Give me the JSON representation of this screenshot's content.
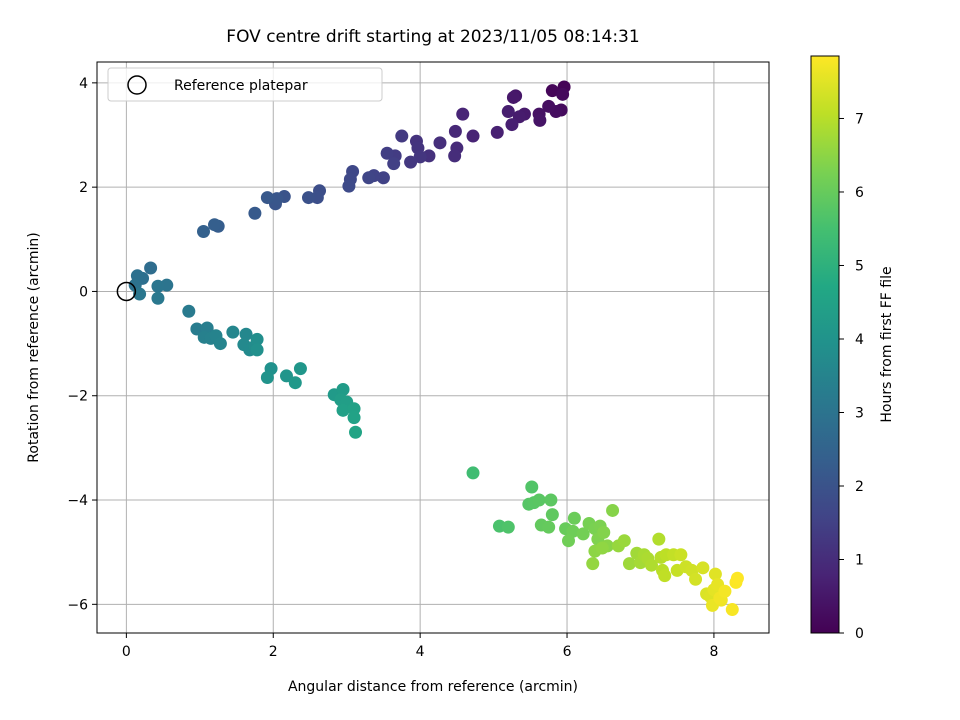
{
  "chart_data": {
    "type": "scatter",
    "title": "FOV centre drift starting at 2023/11/05 08:14:31",
    "xlabel": "Angular distance from reference (arcmin)",
    "ylabel": "Rotation from reference (arcmin)",
    "xlim": [
      -0.4,
      8.75
    ],
    "ylim": [
      -6.55,
      4.4
    ],
    "xticks": [
      0,
      2,
      4,
      6,
      8
    ],
    "yticks": [
      -6,
      -4,
      -2,
      0,
      2,
      4
    ],
    "xtick_labels": [
      "0",
      "2",
      "4",
      "6",
      "8"
    ],
    "ytick_labels": [
      "−6",
      "−4",
      "−2",
      "0",
      "2",
      "4"
    ],
    "grid": true,
    "legend": {
      "position": "top-left",
      "label": "Reference platepar"
    },
    "reference_point": {
      "x": 0,
      "y": 0
    },
    "colorbar": {
      "label": "Hours from first FF file",
      "range": [
        0,
        7.85
      ],
      "ticks": [
        0,
        1,
        2,
        3,
        4,
        5,
        6,
        7
      ],
      "tick_labels": [
        "0",
        "1",
        "2",
        "3",
        "4",
        "5",
        "6",
        "7"
      ],
      "colormap": "viridis"
    },
    "points": [
      {
        "x": 5.96,
        "y": 3.92,
        "h": 0.05
      },
      {
        "x": 5.8,
        "y": 3.85,
        "h": 0.12
      },
      {
        "x": 5.94,
        "y": 3.78,
        "h": 0.18
      },
      {
        "x": 5.92,
        "y": 3.48,
        "h": 0.22
      },
      {
        "x": 5.85,
        "y": 3.45,
        "h": 0.28
      },
      {
        "x": 5.75,
        "y": 3.55,
        "h": 0.32
      },
      {
        "x": 5.62,
        "y": 3.4,
        "h": 0.38
      },
      {
        "x": 5.63,
        "y": 3.28,
        "h": 0.42
      },
      {
        "x": 5.3,
        "y": 3.75,
        "h": 0.48
      },
      {
        "x": 5.27,
        "y": 3.72,
        "h": 0.52
      },
      {
        "x": 5.42,
        "y": 3.4,
        "h": 0.55
      },
      {
        "x": 5.35,
        "y": 3.35,
        "h": 0.6
      },
      {
        "x": 5.2,
        "y": 3.45,
        "h": 0.65
      },
      {
        "x": 5.25,
        "y": 3.2,
        "h": 0.68
      },
      {
        "x": 5.05,
        "y": 3.05,
        "h": 0.72
      },
      {
        "x": 4.72,
        "y": 2.98,
        "h": 0.78
      },
      {
        "x": 4.58,
        "y": 3.4,
        "h": 0.82
      },
      {
        "x": 4.48,
        "y": 3.07,
        "h": 0.88
      },
      {
        "x": 4.5,
        "y": 2.75,
        "h": 0.95
      },
      {
        "x": 4.47,
        "y": 2.6,
        "h": 1.0
      },
      {
        "x": 4.27,
        "y": 2.85,
        "h": 1.05
      },
      {
        "x": 4.12,
        "y": 2.6,
        "h": 1.1
      },
      {
        "x": 3.95,
        "y": 2.88,
        "h": 1.15
      },
      {
        "x": 3.97,
        "y": 2.75,
        "h": 1.18
      },
      {
        "x": 4.0,
        "y": 2.58,
        "h": 1.22
      },
      {
        "x": 3.87,
        "y": 2.48,
        "h": 1.28
      },
      {
        "x": 3.75,
        "y": 2.98,
        "h": 1.32
      },
      {
        "x": 3.66,
        "y": 2.6,
        "h": 1.38
      },
      {
        "x": 3.55,
        "y": 2.65,
        "h": 1.42
      },
      {
        "x": 3.64,
        "y": 2.45,
        "h": 1.48
      },
      {
        "x": 3.5,
        "y": 2.18,
        "h": 1.52
      },
      {
        "x": 3.37,
        "y": 2.22,
        "h": 1.58
      },
      {
        "x": 3.3,
        "y": 2.18,
        "h": 1.62
      },
      {
        "x": 3.08,
        "y": 2.3,
        "h": 1.68
      },
      {
        "x": 3.05,
        "y": 2.15,
        "h": 1.72
      },
      {
        "x": 3.03,
        "y": 2.02,
        "h": 1.78
      },
      {
        "x": 2.63,
        "y": 1.93,
        "h": 1.85
      },
      {
        "x": 2.6,
        "y": 1.8,
        "h": 1.9
      },
      {
        "x": 2.48,
        "y": 1.8,
        "h": 1.95
      },
      {
        "x": 2.15,
        "y": 1.82,
        "h": 2.0
      },
      {
        "x": 2.03,
        "y": 1.68,
        "h": 2.05
      },
      {
        "x": 2.05,
        "y": 1.78,
        "h": 2.1
      },
      {
        "x": 1.92,
        "y": 1.8,
        "h": 2.15
      },
      {
        "x": 1.75,
        "y": 1.5,
        "h": 2.22
      },
      {
        "x": 1.25,
        "y": 1.25,
        "h": 2.3
      },
      {
        "x": 1.2,
        "y": 1.28,
        "h": 2.35
      },
      {
        "x": 1.05,
        "y": 1.15,
        "h": 2.42
      },
      {
        "x": 0.33,
        "y": 0.45,
        "h": 2.8
      },
      {
        "x": 0.22,
        "y": 0.25,
        "h": 2.85
      },
      {
        "x": 0.15,
        "y": 0.3,
        "h": 2.9
      },
      {
        "x": 0.12,
        "y": 0.12,
        "h": 2.95
      },
      {
        "x": 0.55,
        "y": 0.12,
        "h": 3.0
      },
      {
        "x": 0.43,
        "y": 0.1,
        "h": 3.05
      },
      {
        "x": 0.18,
        "y": -0.05,
        "h": 3.1
      },
      {
        "x": 0.43,
        "y": -0.13,
        "h": 3.15
      },
      {
        "x": 0.85,
        "y": -0.38,
        "h": 3.2
      },
      {
        "x": 0.96,
        "y": -0.72,
        "h": 3.28
      },
      {
        "x": 1.1,
        "y": -0.7,
        "h": 3.32
      },
      {
        "x": 1.06,
        "y": -0.88,
        "h": 3.38
      },
      {
        "x": 1.15,
        "y": -0.9,
        "h": 3.42
      },
      {
        "x": 1.22,
        "y": -0.85,
        "h": 3.48
      },
      {
        "x": 1.28,
        "y": -1.0,
        "h": 3.52
      },
      {
        "x": 1.45,
        "y": -0.78,
        "h": 3.58
      },
      {
        "x": 1.63,
        "y": -0.82,
        "h": 3.62
      },
      {
        "x": 1.6,
        "y": -1.02,
        "h": 3.68
      },
      {
        "x": 1.68,
        "y": -1.12,
        "h": 3.72
      },
      {
        "x": 1.75,
        "y": -1.05,
        "h": 3.78
      },
      {
        "x": 1.78,
        "y": -0.92,
        "h": 3.82
      },
      {
        "x": 1.78,
        "y": -1.12,
        "h": 3.88
      },
      {
        "x": 1.97,
        "y": -1.48,
        "h": 3.92
      },
      {
        "x": 1.92,
        "y": -1.65,
        "h": 3.98
      },
      {
        "x": 2.18,
        "y": -1.62,
        "h": 4.05
      },
      {
        "x": 2.37,
        "y": -1.48,
        "h": 4.1
      },
      {
        "x": 2.3,
        "y": -1.75,
        "h": 4.15
      },
      {
        "x": 2.83,
        "y": -1.98,
        "h": 4.22
      },
      {
        "x": 2.95,
        "y": -1.88,
        "h": 4.28
      },
      {
        "x": 2.92,
        "y": -2.08,
        "h": 4.32
      },
      {
        "x": 3.0,
        "y": -2.12,
        "h": 4.38
      },
      {
        "x": 2.95,
        "y": -2.28,
        "h": 4.42
      },
      {
        "x": 3.1,
        "y": -2.25,
        "h": 4.48
      },
      {
        "x": 3.1,
        "y": -2.42,
        "h": 4.52
      },
      {
        "x": 3.12,
        "y": -2.7,
        "h": 4.58
      },
      {
        "x": 4.72,
        "y": -3.48,
        "h": 5.4
      },
      {
        "x": 5.08,
        "y": -4.5,
        "h": 5.6
      },
      {
        "x": 5.2,
        "y": -4.52,
        "h": 5.65
      },
      {
        "x": 5.52,
        "y": -3.75,
        "h": 5.7
      },
      {
        "x": 5.48,
        "y": -4.08,
        "h": 5.75
      },
      {
        "x": 5.55,
        "y": -4.05,
        "h": 5.78
      },
      {
        "x": 5.62,
        "y": -4.0,
        "h": 5.82
      },
      {
        "x": 5.78,
        "y": -4.0,
        "h": 5.86
      },
      {
        "x": 5.8,
        "y": -4.28,
        "h": 5.9
      },
      {
        "x": 5.65,
        "y": -4.48,
        "h": 5.94
      },
      {
        "x": 5.75,
        "y": -4.52,
        "h": 5.98
      },
      {
        "x": 5.98,
        "y": -4.55,
        "h": 6.02
      },
      {
        "x": 6.1,
        "y": -4.35,
        "h": 6.06
      },
      {
        "x": 6.08,
        "y": -4.6,
        "h": 6.1
      },
      {
        "x": 6.02,
        "y": -4.78,
        "h": 6.14
      },
      {
        "x": 6.22,
        "y": -4.65,
        "h": 6.18
      },
      {
        "x": 6.3,
        "y": -4.45,
        "h": 6.22
      },
      {
        "x": 6.38,
        "y": -4.55,
        "h": 6.26
      },
      {
        "x": 6.45,
        "y": -4.5,
        "h": 6.3
      },
      {
        "x": 6.42,
        "y": -4.75,
        "h": 6.34
      },
      {
        "x": 6.5,
        "y": -4.62,
        "h": 6.38
      },
      {
        "x": 6.62,
        "y": -4.2,
        "h": 6.42
      },
      {
        "x": 6.55,
        "y": -4.88,
        "h": 6.46
      },
      {
        "x": 6.38,
        "y": -4.98,
        "h": 6.5
      },
      {
        "x": 6.48,
        "y": -4.92,
        "h": 6.54
      },
      {
        "x": 6.35,
        "y": -5.22,
        "h": 6.58
      },
      {
        "x": 6.7,
        "y": -4.88,
        "h": 6.62
      },
      {
        "x": 6.78,
        "y": -4.78,
        "h": 6.66
      },
      {
        "x": 6.85,
        "y": -5.22,
        "h": 6.7
      },
      {
        "x": 6.95,
        "y": -5.02,
        "h": 6.74
      },
      {
        "x": 7.0,
        "y": -5.2,
        "h": 6.78
      },
      {
        "x": 7.05,
        "y": -5.05,
        "h": 6.82
      },
      {
        "x": 7.1,
        "y": -5.12,
        "h": 6.86
      },
      {
        "x": 7.15,
        "y": -5.25,
        "h": 6.9
      },
      {
        "x": 7.25,
        "y": -4.75,
        "h": 6.94
      },
      {
        "x": 7.28,
        "y": -5.1,
        "h": 6.98
      },
      {
        "x": 7.3,
        "y": -5.35,
        "h": 7.02
      },
      {
        "x": 7.35,
        "y": -5.05,
        "h": 7.06
      },
      {
        "x": 7.33,
        "y": -5.45,
        "h": 7.1
      },
      {
        "x": 7.45,
        "y": -5.05,
        "h": 7.14
      },
      {
        "x": 7.5,
        "y": -5.35,
        "h": 7.18
      },
      {
        "x": 7.55,
        "y": -5.05,
        "h": 7.22
      },
      {
        "x": 7.62,
        "y": -5.28,
        "h": 7.26
      },
      {
        "x": 7.7,
        "y": -5.35,
        "h": 7.3
      },
      {
        "x": 7.75,
        "y": -5.52,
        "h": 7.34
      },
      {
        "x": 7.85,
        "y": -5.3,
        "h": 7.38
      },
      {
        "x": 7.9,
        "y": -5.8,
        "h": 7.42
      },
      {
        "x": 7.95,
        "y": -5.85,
        "h": 7.46
      },
      {
        "x": 8.02,
        "y": -5.42,
        "h": 7.5
      },
      {
        "x": 8.0,
        "y": -5.72,
        "h": 7.54
      },
      {
        "x": 8.05,
        "y": -5.62,
        "h": 7.58
      },
      {
        "x": 7.98,
        "y": -6.02,
        "h": 7.62
      },
      {
        "x": 8.1,
        "y": -5.92,
        "h": 7.66
      },
      {
        "x": 8.08,
        "y": -5.88,
        "h": 7.7
      },
      {
        "x": 8.15,
        "y": -5.75,
        "h": 7.74
      },
      {
        "x": 8.25,
        "y": -6.1,
        "h": 7.78
      },
      {
        "x": 8.3,
        "y": -5.58,
        "h": 7.82
      },
      {
        "x": 8.32,
        "y": -5.5,
        "h": 7.85
      }
    ]
  }
}
